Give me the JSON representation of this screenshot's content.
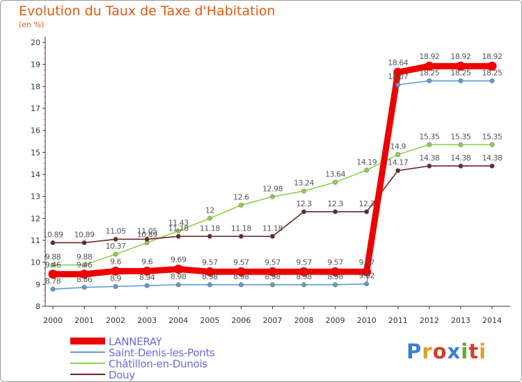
{
  "title": "Evolution du Taux de Taxe d'Habitation",
  "subtitle": "(en %)",
  "logo": {
    "text": "Proxiti",
    "colors": [
      "#3a7fd0",
      "#e0a020",
      "#d0402a",
      "#5aaa30"
    ]
  },
  "chart_data": {
    "type": "line",
    "x": [
      2000,
      2001,
      2002,
      2003,
      2004,
      2005,
      2006,
      2007,
      2008,
      2009,
      2010,
      2011,
      2012,
      2013,
      2014
    ],
    "ylim": [
      8,
      20
    ],
    "yticks": [
      8,
      9,
      10,
      11,
      12,
      13,
      14,
      15,
      16,
      17,
      18,
      19,
      20
    ],
    "grid": false,
    "legend_position": "bottom-left",
    "series": [
      {
        "name": "Saint-Denis-les-Ponts",
        "color": "#5b9bd5",
        "values": [
          8.78,
          8.86,
          8.9,
          8.94,
          8.98,
          8.98,
          8.98,
          8.98,
          8.98,
          8.98,
          9.02,
          18.07,
          18.25,
          18.25,
          18.25
        ],
        "labels": [
          "8.78",
          "8.86",
          "8.9",
          "8.94",
          "8.98",
          "8.98",
          "8.98",
          "8.98",
          "8.98",
          "8.98",
          "9.02",
          "18.07",
          "18.25",
          "18.25",
          "18.25"
        ]
      },
      {
        "name": "Châtillon-en-Dunois",
        "color": "#8ed04a",
        "values": [
          9.88,
          9.88,
          10.37,
          10.89,
          11.43,
          12,
          12.6,
          12.98,
          13.24,
          13.64,
          14.19,
          14.9,
          15.35,
          15.35,
          15.35
        ],
        "labels": [
          "9.88",
          "9.88",
          "10.37",
          "10.89",
          "11.43",
          "12",
          "12.6",
          "12.98",
          "13.24",
          "13.64",
          "14.19",
          "14.9",
          "15.35",
          "15.35",
          "15.35"
        ]
      },
      {
        "name": "Douy",
        "color": "#6b2525",
        "values": [
          10.89,
          10.89,
          11.05,
          11.05,
          11.18,
          11.18,
          11.18,
          11.18,
          12.3,
          12.3,
          12.3,
          14.17,
          14.38,
          14.38,
          14.38
        ],
        "labels": [
          "10.89",
          "10.89",
          "11.05",
          "11.05",
          "11.18",
          "11.18",
          "11.18",
          "11.18",
          "12.3",
          "12.3",
          "12.3",
          "14.17",
          "14.38",
          "14.38",
          "14.38"
        ]
      },
      {
        "name": "LANNERAY",
        "color": "#ee0000",
        "values": [
          9.46,
          9.46,
          9.6,
          9.6,
          9.69,
          9.57,
          9.57,
          9.57,
          9.57,
          9.57,
          9.57,
          18.64,
          18.92,
          18.92,
          18.92
        ],
        "labels": [
          "9.46",
          "9.46",
          "9.6",
          "9.6",
          "9.69",
          "9.57",
          "9.57",
          "9.57",
          "9.57",
          "9.57",
          "9.57",
          "18.64",
          "18.92",
          "18.92",
          "18.92"
        ]
      }
    ],
    "legend": [
      "LANNERAY",
      "Saint-Denis-les-Ponts",
      "Châtillon-en-Dunois",
      "Douy"
    ]
  }
}
